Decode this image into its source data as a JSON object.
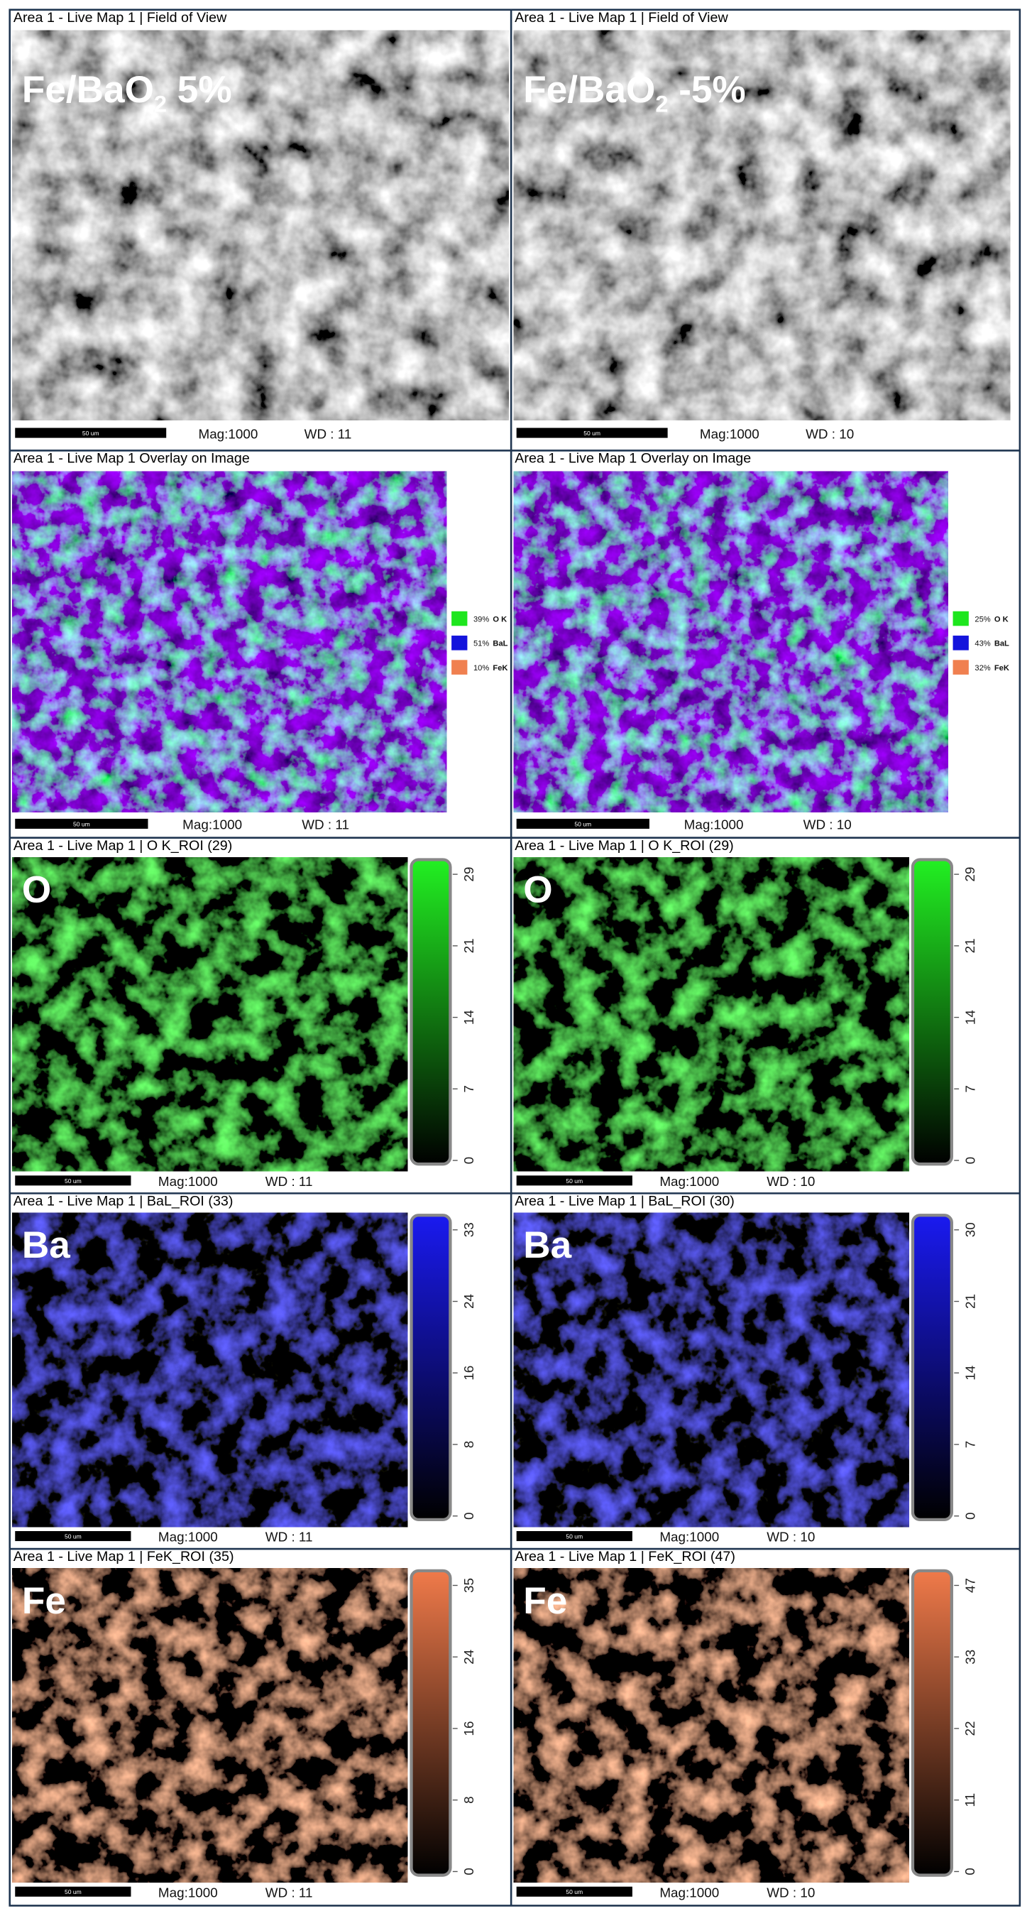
{
  "panels": [
    {
      "kind": "sem",
      "header": "Area 1 - Live Map 1 | Field of View",
      "label": {
        "main": "Fe/BaO",
        "sub": "2",
        "tail": " 5%"
      },
      "scale_bar": "50 um",
      "mag": "Mag:1000",
      "wd": "WD : 11"
    },
    {
      "kind": "sem",
      "header": "Area 1 - Live Map 1 | Field of View",
      "label": {
        "main": "Fe/BaO",
        "sub": "2",
        "tail": " -5%"
      },
      "scale_bar": "50 um",
      "mag": "Mag:1000",
      "wd": "WD : 10"
    },
    {
      "kind": "overlay",
      "header": "Area 1 - Live Map 1 Overlay on Image",
      "legend": [
        {
          "value": "39%",
          "element": "O K",
          "color": "#1ee61e"
        },
        {
          "value": "51%",
          "element": "BaL",
          "color": "#1414dc"
        },
        {
          "value": "10%",
          "element": "FeK",
          "color": "#f08050"
        }
      ],
      "scale_bar": "50 um",
      "mag": "Mag:1000",
      "wd": "WD : 11"
    },
    {
      "kind": "overlay",
      "header": "Area 1 - Live Map 1 Overlay on Image",
      "legend": [
        {
          "value": "25%",
          "element": "O K",
          "color": "#1ee61e"
        },
        {
          "value": "43%",
          "element": "BaL",
          "color": "#1414dc"
        },
        {
          "value": "32%",
          "element": "FeK",
          "color": "#f08050"
        }
      ],
      "scale_bar": "50 um",
      "mag": "Mag:1000",
      "wd": "WD : 10"
    },
    {
      "kind": "map",
      "header": "Area 1 - Live Map 1 | O K_ROI (29)",
      "label": "O",
      "color": "#22f022",
      "ticks": [
        0,
        7,
        14,
        21,
        29
      ],
      "scale_bar": "50 um",
      "mag": "Mag:1000",
      "wd": "WD : 11"
    },
    {
      "kind": "map",
      "header": "Area 1 - Live Map 1 | O K_ROI (29)",
      "label": "O",
      "color": "#22f022",
      "ticks": [
        0,
        7,
        14,
        21,
        29
      ],
      "scale_bar": "50 um",
      "mag": "Mag:1000",
      "wd": "WD : 10"
    },
    {
      "kind": "map",
      "header": "Area 1 - Live Map 1 | BaL_ROI (33)",
      "label": "Ba",
      "color": "#1a1af0",
      "ticks": [
        0,
        8,
        16,
        24,
        33
      ],
      "scale_bar": "50 um",
      "mag": "Mag:1000",
      "wd": "WD : 11"
    },
    {
      "kind": "map",
      "header": "Area 1 - Live Map 1 | BaL_ROI (30)",
      "label": "Ba",
      "color": "#1a1af0",
      "ticks": [
        0,
        7,
        14,
        21,
        30
      ],
      "scale_bar": "50 um",
      "mag": "Mag:1000",
      "wd": "WD : 10"
    },
    {
      "kind": "map",
      "header": "Area 1 - Live Map 1 | FeK_ROI (35)",
      "label": "Fe",
      "color": "#f07a4a",
      "ticks": [
        0,
        8,
        16,
        24,
        35
      ],
      "scale_bar": "50 um",
      "mag": "Mag:1000",
      "wd": "WD : 11"
    },
    {
      "kind": "map",
      "header": "Area 1 - Live Map 1 | FeK_ROI (47)",
      "label": "Fe",
      "color": "#f07a4a",
      "ticks": [
        0,
        11,
        22,
        33,
        47
      ],
      "scale_bar": "50 um",
      "mag": "Mag:1000",
      "wd": "WD : 10"
    }
  ]
}
